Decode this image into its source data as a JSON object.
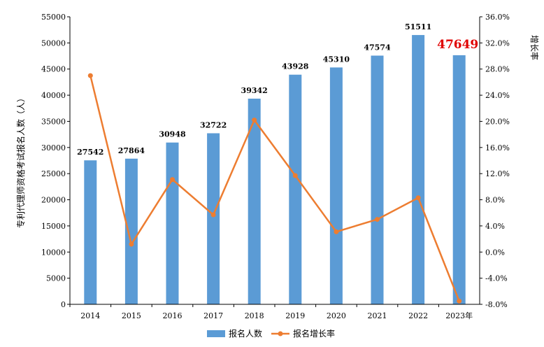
{
  "chart_data": {
    "type": "bar",
    "categories": [
      "2014",
      "2015",
      "2016",
      "2017",
      "2018",
      "2019",
      "2020",
      "2021",
      "2022",
      "2023年"
    ],
    "series": [
      {
        "name": "报名人数",
        "type": "bar",
        "axis": "left",
        "values": [
          27542,
          27864,
          30948,
          32722,
          39342,
          43928,
          45310,
          47574,
          51511,
          47649
        ],
        "labels": [
          "27542",
          "27864",
          "30948",
          "32722",
          "39342",
          "43928",
          "45310",
          "47574",
          "51511",
          "47649"
        ],
        "highlight_index": 9
      },
      {
        "name": "报名增长率",
        "type": "line",
        "axis": "right",
        "values": [
          27.0,
          1.2,
          11.1,
          5.7,
          20.2,
          11.7,
          3.1,
          5.0,
          8.3,
          -7.5
        ]
      }
    ],
    "y_left": {
      "label": "专利代理师资格考试报名人数（人）",
      "min": 0,
      "max": 55000,
      "ticks": [
        "0",
        "5000",
        "10000",
        "15000",
        "20000",
        "25000",
        "30000",
        "35000",
        "40000",
        "45000",
        "50000",
        "55000"
      ]
    },
    "y_right": {
      "label": "增长率",
      "min": -8,
      "max": 36,
      "ticks": [
        "-8.0%",
        "-4.0%",
        "0.0%",
        "4.0%",
        "8.0%",
        "12.0%",
        "16.0%",
        "20.0%",
        "24.0%",
        "28.0%",
        "32.0%",
        "36.0%"
      ]
    },
    "colors": {
      "bar": "#5b9bd5",
      "line": "#ed7d31",
      "highlight": "#e00000",
      "axis": "#000000"
    },
    "legend": {
      "position": "bottom"
    }
  }
}
